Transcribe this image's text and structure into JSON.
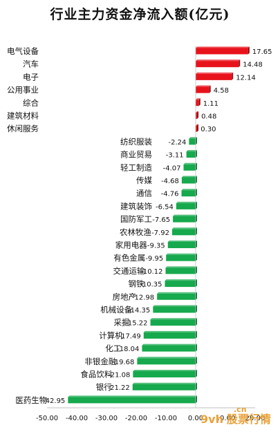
{
  "chart_data": {
    "type": "bar",
    "orientation": "horizontal",
    "title": "行业主力资金净流入额(亿元)",
    "categories": [
      "电气设备",
      "汽车",
      "电子",
      "公用事业",
      "综合",
      "建筑材料",
      "休闲服务",
      "纺织服装",
      "商业贸易",
      "轻工制造",
      "传媒",
      "通信",
      "建筑装饰",
      "国防军工",
      "农林牧渔",
      "家用电器",
      "有色金属",
      "交通运输",
      "钢铁",
      "房地产",
      "机械设备",
      "采掘",
      "计算机",
      "化工",
      "非银金融",
      "食品饮料",
      "银行",
      "医药生物"
    ],
    "values": [
      17.65,
      14.48,
      12.14,
      4.58,
      1.11,
      0.48,
      0.3,
      -2.24,
      -3.11,
      -4.07,
      -4.68,
      -4.76,
      -6.54,
      -7.65,
      -7.92,
      -9.35,
      -9.95,
      -10.12,
      -10.35,
      -12.98,
      -14.35,
      -15.22,
      -17.49,
      -18.04,
      -19.68,
      -21.08,
      -21.22,
      -42.95
    ],
    "value_labels": [
      "17.65",
      "14.48",
      "12.14",
      "4.58",
      "1.11",
      "0.48",
      "0.30",
      "-2.24",
      "-3.11",
      "-4.07",
      "-4.68",
      "-4.76",
      "-6.54",
      "-7.65",
      "-7.92",
      "-9.35",
      "-9.95",
      "-10.12",
      "-10.35",
      "-12.98",
      "-14.35",
      "-15.22",
      "-17.49",
      "-18.04",
      "-19.68",
      "-21.08",
      "-21.22",
      "-42.95"
    ],
    "xlim": [
      -50,
      20
    ],
    "x_ticks": [
      -50,
      -40,
      -30,
      -20,
      -10,
      0,
      10,
      20
    ],
    "x_tick_labels": [
      "-50.00",
      "-40.00",
      "-30.00",
      "-20.00",
      "-10.00",
      "0.00",
      "10.00",
      "20.00"
    ],
    "grid": false,
    "colors": {
      "positive": "#e8121b",
      "negative": "#16a94d"
    }
  },
  "watermark": {
    "domain": ".cn",
    "brand": "股票行情",
    "mark": "9vh"
  }
}
